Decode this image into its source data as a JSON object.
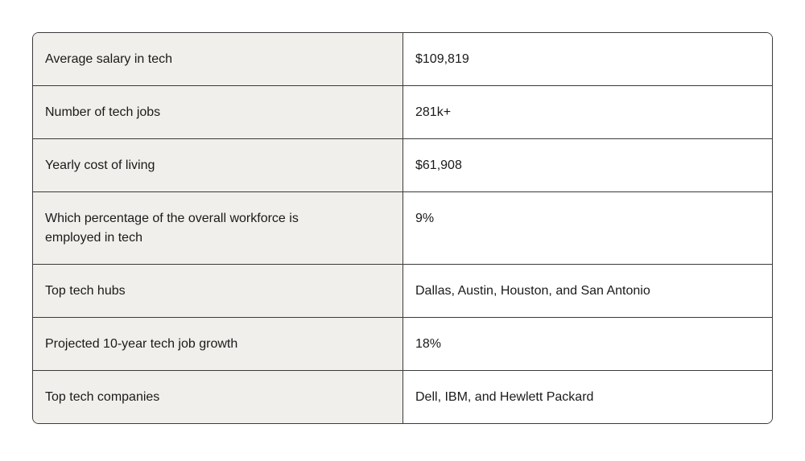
{
  "table": {
    "rows": [
      [
        "Average salary in tech",
        "$109,819"
      ],
      [
        "Number of tech jobs",
        "281k+"
      ],
      [
        "Yearly cost of living",
        "$61,908"
      ],
      [
        "Which percentage of the overall workforce is employed in tech",
        "9%"
      ],
      [
        "Top tech hubs",
        "Dallas, Austin, Houston, and San Antonio"
      ],
      [
        "Projected 10-year tech job growth",
        "18%"
      ],
      [
        "Top tech companies",
        "Dell, IBM, and Hewlett Packard"
      ]
    ]
  }
}
